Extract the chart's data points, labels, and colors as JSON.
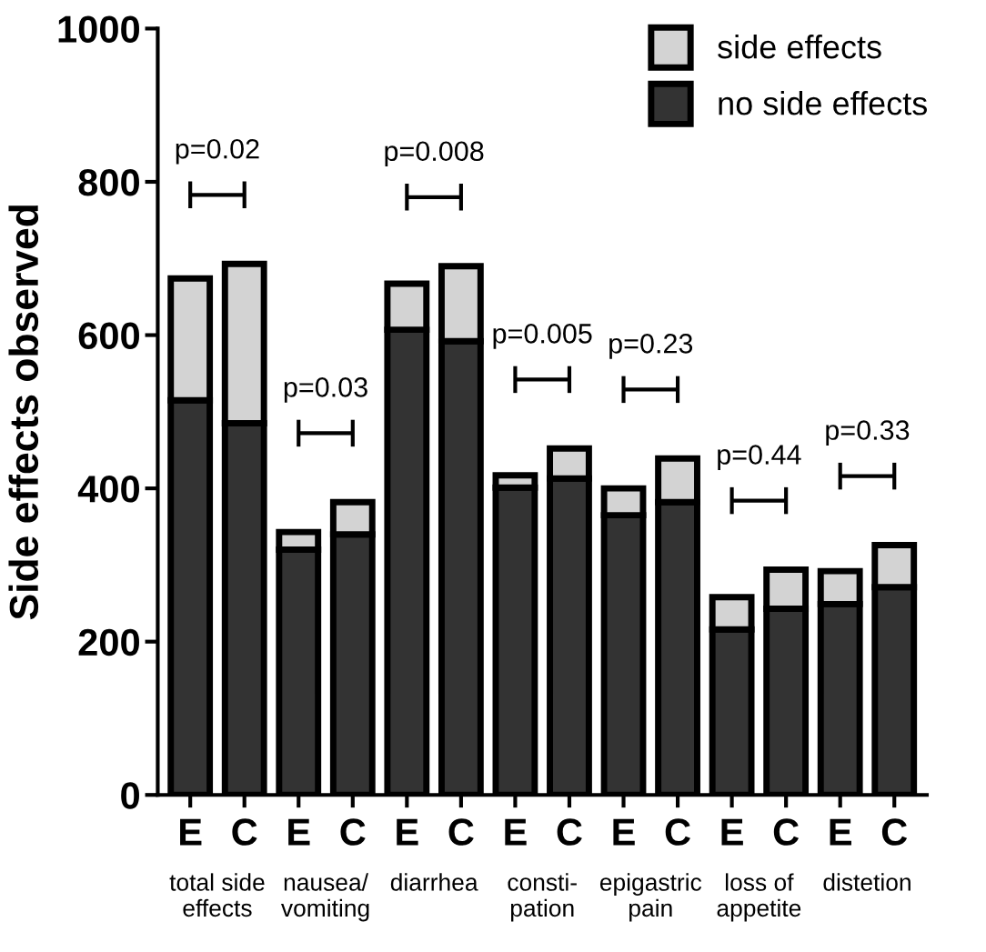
{
  "chart_data": {
    "type": "bar",
    "stacked": true,
    "ylabel": "Side effects observed",
    "categories": [
      "E",
      "C",
      "E",
      "C",
      "E",
      "C",
      "E",
      "C",
      "E",
      "C",
      "E",
      "C",
      "E",
      "C"
    ],
    "series": [
      {
        "name": "no side effects",
        "color": "#333333",
        "values": [
          515,
          485,
          320,
          340,
          607,
          592,
          401,
          413,
          365,
          382,
          216,
          243,
          249,
          271
        ]
      },
      {
        "name": "side effects",
        "color": "#d3d3d3",
        "values": [
          159,
          208,
          23,
          42,
          60,
          98,
          16,
          39,
          35,
          57,
          42,
          51,
          43,
          55
        ]
      }
    ],
    "annotations": [
      "p=0.02",
      "p=0.03",
      "p=0.008",
      "p=0.005",
      "p=0.23",
      "p=0.44",
      "p=0.33",
      "total side\neffects",
      "nausea/\nvomiting",
      "diarrhea",
      "consti-\npation",
      "epigastric\npain",
      "loss of\nappetite",
      "distetion"
    ],
    "ylim": [
      0,
      1000
    ],
    "yticks": [
      0,
      200,
      400,
      600,
      800,
      1000
    ],
    "grid": false,
    "legend": "top right"
  }
}
